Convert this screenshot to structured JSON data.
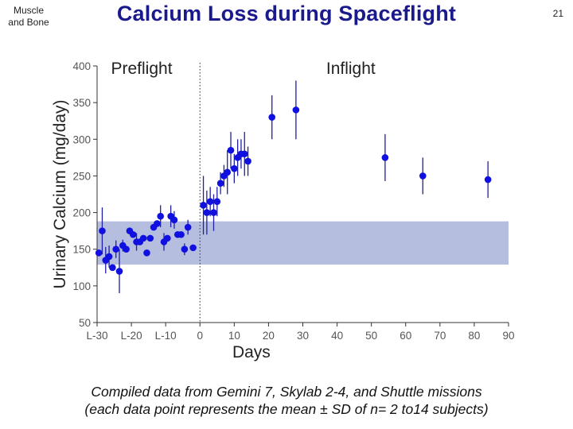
{
  "header": {
    "section_line1": "Muscle",
    "section_line2": "and Bone",
    "title": "Calcium Loss during Spaceflight",
    "page_number": "21"
  },
  "caption": {
    "line1": "Compiled data from Gemini 7, Skylab 2-4, and Shuttle missions",
    "line2": "(each data point represents the mean ± SD of n= 2 to14 subjects)"
  },
  "colors": {
    "point": "#1010e0",
    "error_bar": "#2020a0",
    "normal_band": "#b5bedf",
    "axis": "#333333"
  },
  "chart_data": {
    "type": "scatter",
    "title": "Calcium Loss during Spaceflight",
    "xlabel": "Days",
    "ylabel": "Urinary Calcium (mg/day)",
    "xlim": [
      -30,
      90
    ],
    "ylim": [
      50,
      400
    ],
    "x_ticks": [
      {
        "value": -30,
        "label": "L-30"
      },
      {
        "value": -20,
        "label": "L-20"
      },
      {
        "value": -10,
        "label": "L-10"
      },
      {
        "value": 0,
        "label": "0"
      },
      {
        "value": 10,
        "label": "10"
      },
      {
        "value": 20,
        "label": "20"
      },
      {
        "value": 30,
        "label": "30"
      },
      {
        "value": 40,
        "label": "40"
      },
      {
        "value": 50,
        "label": "50"
      },
      {
        "value": 60,
        "label": "60"
      },
      {
        "value": 70,
        "label": "70"
      },
      {
        "value": 80,
        "label": "80"
      },
      {
        "value": 90,
        "label": "90"
      }
    ],
    "y_ticks": [
      {
        "value": 50,
        "label": "50"
      },
      {
        "value": 100,
        "label": "100"
      },
      {
        "value": 150,
        "label": "150"
      },
      {
        "value": 200,
        "label": "200"
      },
      {
        "value": 250,
        "label": "250"
      },
      {
        "value": 300,
        "label": "300"
      },
      {
        "value": 350,
        "label": "350"
      },
      {
        "value": 400,
        "label": "400"
      }
    ],
    "phase_labels": [
      {
        "label": "Preflight",
        "x": -17
      },
      {
        "label": "Inflight",
        "x": 44
      }
    ],
    "launch_marker_x": 0,
    "normal_range": {
      "low": 129,
      "high": 188,
      "x_start": -30,
      "x_end": 90
    },
    "series": [
      {
        "name": "Preflight",
        "points": [
          {
            "x": -29.5,
            "y": 145,
            "err": 0
          },
          {
            "x": -28.5,
            "y": 175,
            "err": 32
          },
          {
            "x": -27.5,
            "y": 135,
            "err": 18
          },
          {
            "x": -26.5,
            "y": 140,
            "err": 15
          },
          {
            "x": -25.5,
            "y": 125,
            "err": 0
          },
          {
            "x": -24.5,
            "y": 150,
            "err": 12
          },
          {
            "x": -23.5,
            "y": 120,
            "err": 30
          },
          {
            "x": -22.5,
            "y": 155,
            "err": 8
          },
          {
            "x": -21.5,
            "y": 150,
            "err": 0
          },
          {
            "x": -20.5,
            "y": 175,
            "err": 0
          },
          {
            "x": -19.5,
            "y": 170,
            "err": 0
          },
          {
            "x": -18.5,
            "y": 160,
            "err": 12
          },
          {
            "x": -17.5,
            "y": 160,
            "err": 0
          },
          {
            "x": -16.5,
            "y": 165,
            "err": 0
          },
          {
            "x": -15.5,
            "y": 145,
            "err": 0
          },
          {
            "x": -14.5,
            "y": 165,
            "err": 0
          },
          {
            "x": -13.5,
            "y": 180,
            "err": 0
          },
          {
            "x": -12.5,
            "y": 185,
            "err": 0
          },
          {
            "x": -11.5,
            "y": 195,
            "err": 15
          },
          {
            "x": -10.5,
            "y": 160,
            "err": 12
          },
          {
            "x": -9.5,
            "y": 165,
            "err": 0
          },
          {
            "x": -8.5,
            "y": 195,
            "err": 15
          },
          {
            "x": -7.5,
            "y": 190,
            "err": 12
          },
          {
            "x": -6.5,
            "y": 170,
            "err": 0
          },
          {
            "x": -5.5,
            "y": 170,
            "err": 0
          },
          {
            "x": -4.5,
            "y": 150,
            "err": 8
          },
          {
            "x": -3.5,
            "y": 180,
            "err": 10
          },
          {
            "x": -2,
            "y": 152,
            "err": 0
          }
        ]
      },
      {
        "name": "Inflight",
        "points": [
          {
            "x": 1,
            "y": 210,
            "err": 40
          },
          {
            "x": 2,
            "y": 200,
            "err": 30
          },
          {
            "x": 3,
            "y": 215,
            "err": 20
          },
          {
            "x": 4,
            "y": 200,
            "err": 25
          },
          {
            "x": 5,
            "y": 215,
            "err": 20
          },
          {
            "x": 6,
            "y": 240,
            "err": 15
          },
          {
            "x": 7,
            "y": 250,
            "err": 15
          },
          {
            "x": 8,
            "y": 255,
            "err": 30
          },
          {
            "x": 9,
            "y": 285,
            "err": 25
          },
          {
            "x": 10,
            "y": 260,
            "err": 20
          },
          {
            "x": 11,
            "y": 275,
            "err": 25
          },
          {
            "x": 12,
            "y": 280,
            "err": 20
          },
          {
            "x": 13,
            "y": 280,
            "err": 30
          },
          {
            "x": 14,
            "y": 270,
            "err": 20
          },
          {
            "x": 21,
            "y": 330,
            "err": 30
          },
          {
            "x": 28,
            "y": 340,
            "err": 40
          },
          {
            "x": 54,
            "y": 275,
            "err": 32
          },
          {
            "x": 65,
            "y": 250,
            "err": 25
          },
          {
            "x": 84,
            "y": 245,
            "err": 25
          }
        ]
      }
    ]
  }
}
